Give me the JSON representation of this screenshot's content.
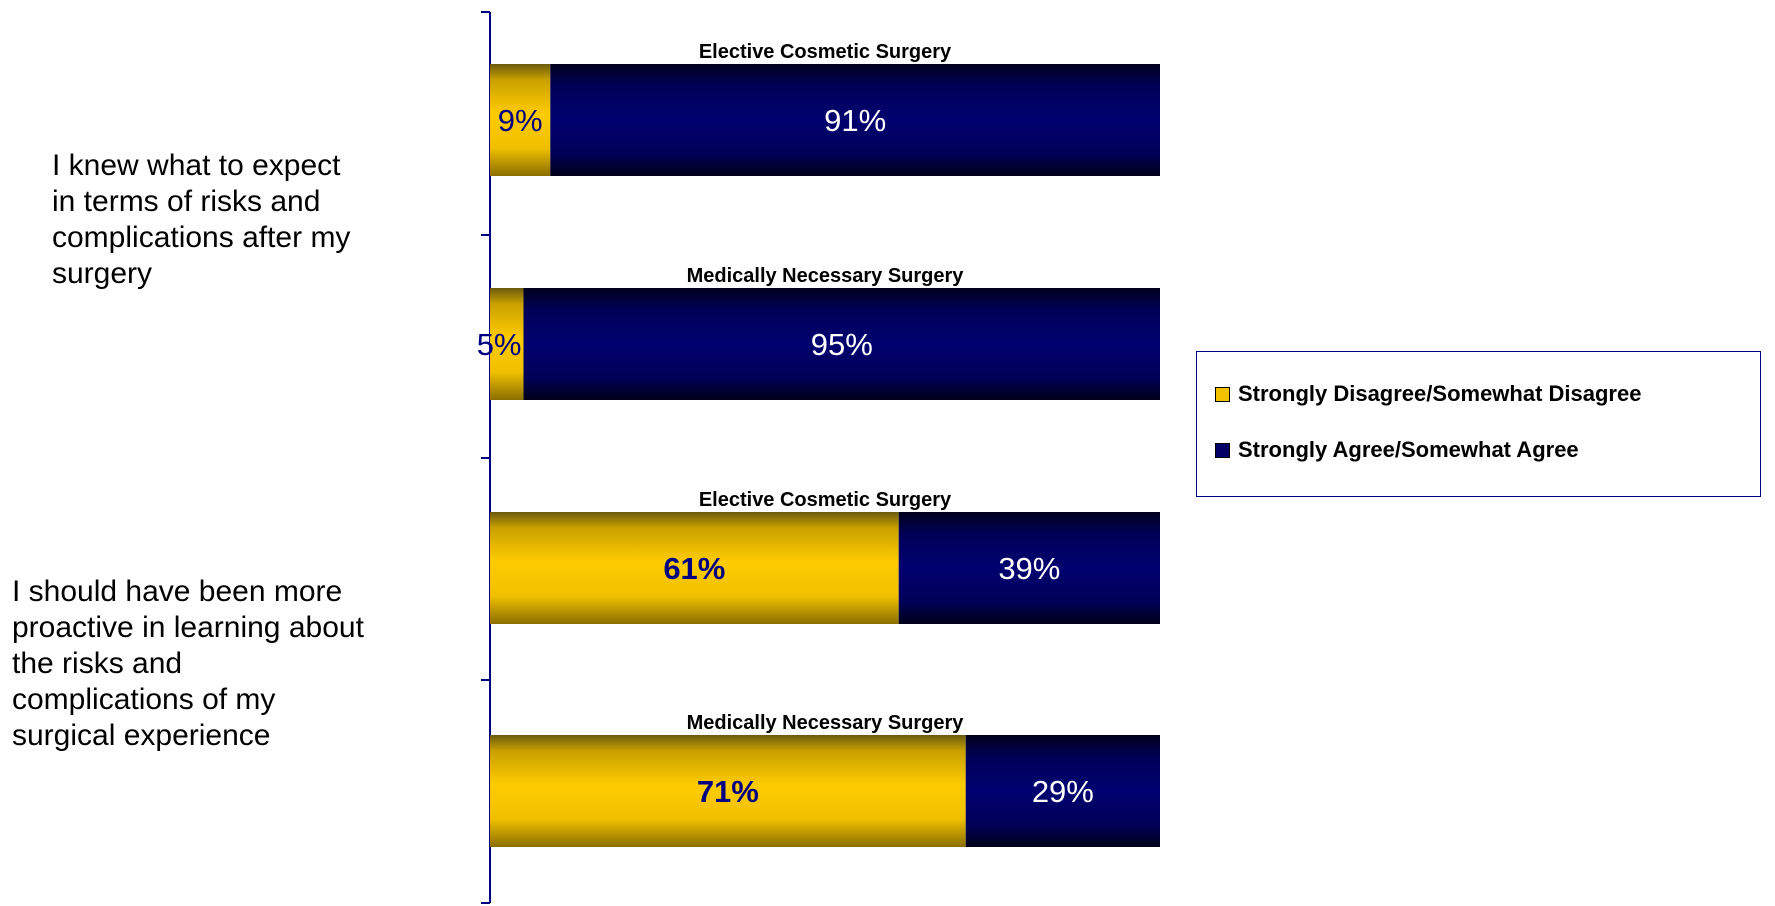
{
  "chart_data": {
    "type": "bar",
    "orientation": "horizontal",
    "stacked": true,
    "normalized": true,
    "questions": [
      {
        "label": "I knew what to expect\nin terms of risks and\ncomplications after my\nsurgery",
        "bars": [
          {
            "category": "Elective Cosmetic Surgery",
            "values": [
              9,
              91
            ],
            "labels": [
              "9%",
              "91%"
            ]
          },
          {
            "category": "Medically Necessary Surgery",
            "values": [
              5,
              95
            ],
            "labels": [
              "5%",
              "95%"
            ]
          }
        ]
      },
      {
        "label": "I should have been more\nproactive in learning about\nthe risks and\ncomplications of my\nsurgical experience",
        "bars": [
          {
            "category": "Elective Cosmetic Surgery",
            "values": [
              61,
              39
            ],
            "labels": [
              "61%",
              "39%"
            ]
          },
          {
            "category": "Medically Necessary Surgery",
            "values": [
              71,
              29
            ],
            "labels": [
              "71%",
              "29%"
            ]
          }
        ]
      }
    ],
    "series": [
      {
        "name": "Strongly Disagree/Somewhat Disagree",
        "color": "#F2C200"
      },
      {
        "name": "Strongly Agree/Somewhat Agree",
        "color": "#000066"
      }
    ],
    "xlim": [
      0,
      100
    ],
    "grid": false,
    "legend_position": "right"
  }
}
